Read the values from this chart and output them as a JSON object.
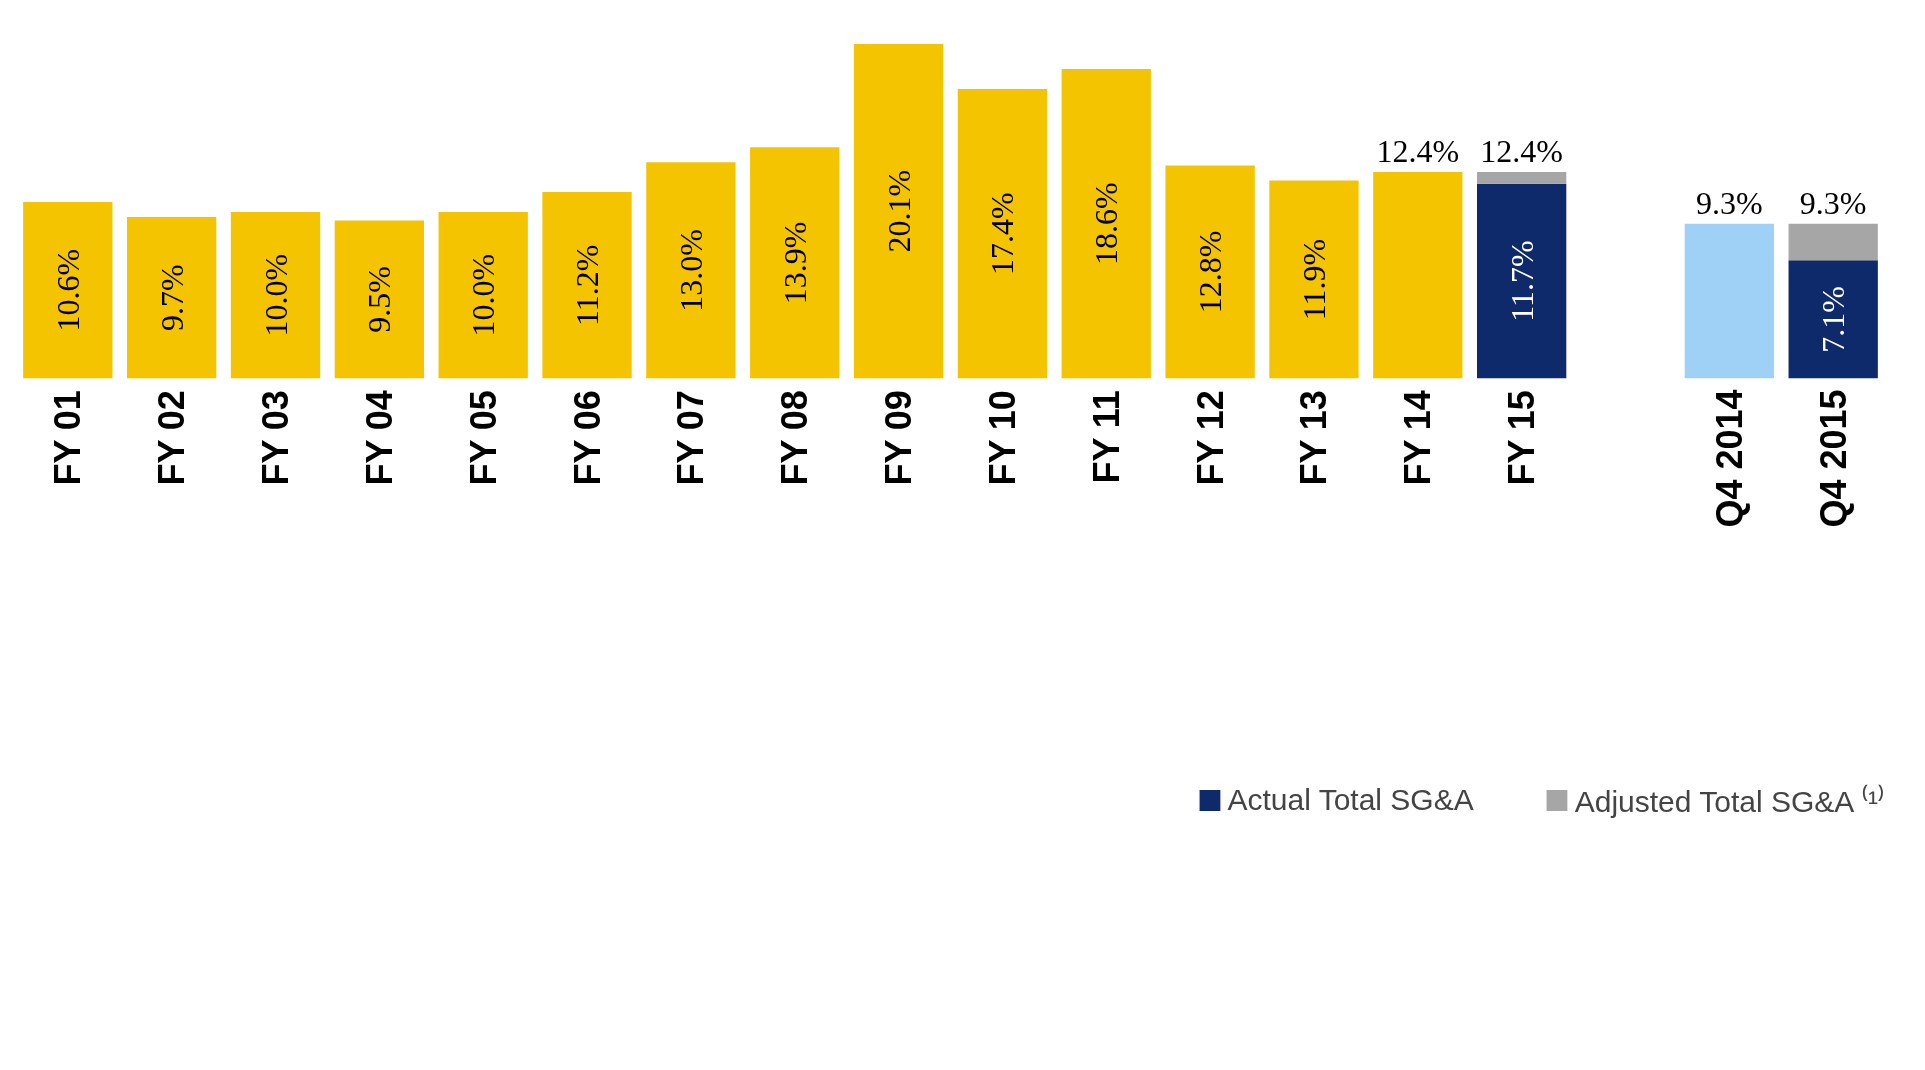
{
  "chart_data": {
    "type": "bar",
    "stacked": true,
    "categories": [
      "FY 01",
      "FY 02",
      "FY 03",
      "FY 04",
      "FY 05",
      "FY 06",
      "FY 07",
      "FY 08",
      "FY 09",
      "FY 10",
      "FY 11",
      "FY 12",
      "FY 13",
      "FY 14",
      "FY 15",
      null,
      "Q4 2014",
      "Q4 2015"
    ],
    "series": [
      {
        "color": "#f5c400",
        "values": [
          10.6,
          9.7,
          10.0,
          9.5,
          10.0,
          11.2,
          13.0,
          13.9,
          20.1,
          17.4,
          18.6,
          12.8,
          11.9,
          12.4,
          null,
          null,
          null,
          null
        ],
        "value_labels": [
          "10.6%",
          "9.7%",
          "10.0%",
          "9.5%",
          "10.0%",
          "11.2%",
          "13.0%",
          "13.9%",
          "20.1%",
          "17.4%",
          "18.6%",
          "12.8%",
          "11.9%",
          null,
          null,
          null,
          null,
          null
        ]
      },
      {
        "color": "#9fd0f5",
        "values": [
          null,
          null,
          null,
          null,
          null,
          null,
          null,
          null,
          null,
          null,
          null,
          null,
          null,
          null,
          null,
          null,
          9.3,
          null
        ]
      },
      {
        "name": "Actual Total SG&A",
        "color": "#0f2a6b",
        "values": [
          null,
          null,
          null,
          null,
          null,
          null,
          null,
          null,
          null,
          null,
          null,
          null,
          null,
          null,
          11.7,
          null,
          null,
          7.1
        ],
        "value_labels": [
          null,
          null,
          null,
          null,
          null,
          null,
          null,
          null,
          null,
          null,
          null,
          null,
          null,
          null,
          "11.7%",
          null,
          null,
          "7.1%"
        ]
      },
      {
        "name": "Adjusted Total SG&A ⁽¹⁾",
        "color": "#a6a6a6",
        "values": [
          null,
          null,
          null,
          null,
          null,
          null,
          null,
          null,
          null,
          null,
          null,
          null,
          null,
          null,
          0.7,
          null,
          null,
          2.2
        ]
      }
    ],
    "totals": [
      null,
      null,
      null,
      null,
      null,
      null,
      null,
      null,
      null,
      null,
      null,
      null,
      null,
      "12.4%",
      "12.4%",
      null,
      "9.3%",
      "9.3%"
    ],
    "tick_labels": "x",
    "grid": false,
    "legend": "bottom"
  }
}
